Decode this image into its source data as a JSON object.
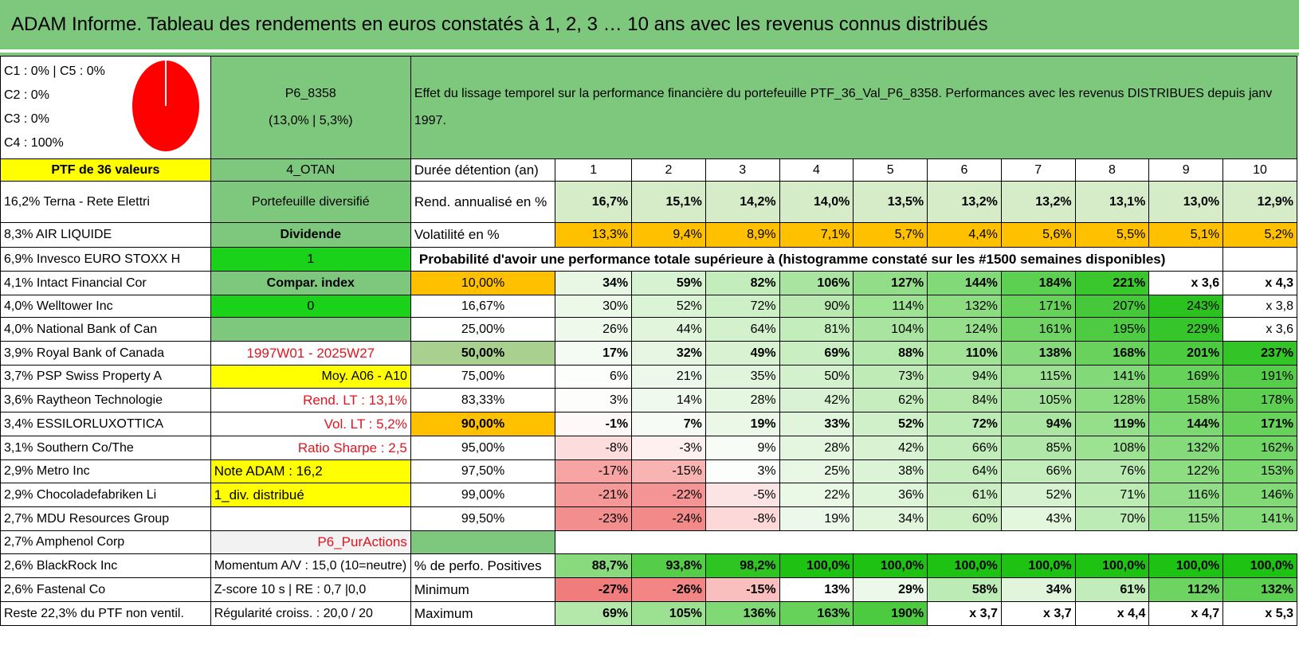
{
  "title": "ADAM Informe. Tableau des rendements en euros constatés à 1, 2, 3 … 10 ans avec les revenus connus distribués",
  "composition": [
    "C1 : 0% | C5 : 0%",
    "C2 : 0%",
    "C3 : 0%",
    "C4 : 100%"
  ],
  "portfolio_code": "P6_8358",
  "portfolio_perf": "(13,0% | 5,3%)",
  "description": "Effet du lissage temporel sur la performance financière du portefeuille PTF_36_Val_P6_8358. Performances avec les revenus DISTRIBUES depuis janv 1997.",
  "colors": {
    "header_green": "#7ec87e",
    "pie": "#ff0000",
    "yellow": "#ffff00",
    "orange": "#ffc000",
    "bright_green": "#19d219",
    "red_text": "#e0141e"
  },
  "col_a": [
    "PTF de 36 valeurs",
    "16,2% Terna - Rete Elettri",
    "8,3% AIR LIQUIDE",
    "6,9% Invesco EURO STOXX H",
    "4,1% Intact Financial Cor",
    "4,0% Welltower Inc",
    "4,0% National Bank of Can",
    "3,9% Royal Bank of Canada",
    "3,7% PSP Swiss Property A",
    "3,6% Raytheon Technologie",
    "3,4% ESSILORLUXOTTICA",
    "3,1% Southern Co/The",
    "2,9% Metro Inc",
    "2,9% Chocoladefabriken Li",
    "2,7% MDU Resources Group",
    "2,7% Amphenol Corp",
    "2,6% BlackRock Inc",
    "2,6% Fastenal Co",
    "Reste 22,3% du PTF non ventil."
  ],
  "col_b": [
    "4_OTAN",
    "Portefeuille diversifié",
    "Dividende",
    "1",
    "Compar. index",
    "0",
    "",
    "1997W01 - 2025W27",
    "Moy. A06 - A10",
    "Rend. LT : 13,1%",
    "Vol. LT : 5,2%",
    "Ratio Sharpe : 2,5",
    "Note ADAM : 16,2",
    "1_div. distribué",
    "",
    "P6_PurActions",
    "Momentum A/V : 15,0 (10=neutre)",
    "Z-score 10 s | RE : 0,7 |0,0",
    "Régularité croiss. : 20,0 / 20"
  ],
  "duration_label": "Durée détention (an)",
  "years": [
    "1",
    "2",
    "3",
    "4",
    "5",
    "6",
    "7",
    "8",
    "9",
    "10"
  ],
  "rend_label": "Rend. annualisé en %",
  "rend": [
    "16,7%",
    "15,1%",
    "14,2%",
    "14,0%",
    "13,5%",
    "13,2%",
    "13,2%",
    "13,1%",
    "13,0%",
    "12,9%"
  ],
  "vol_label": "Volatilité en %",
  "vol": [
    "13,3%",
    "9,4%",
    "8,9%",
    "7,1%",
    "5,7%",
    "4,4%",
    "5,6%",
    "5,5%",
    "5,1%",
    "5,2%"
  ],
  "prob_label": "Probabilité d'avoir une performance totale supérieure à (histogramme constaté sur les #1500 semaines disponibles)",
  "quantiles": [
    {
      "q": "10,00%",
      "v": [
        "34%",
        "59%",
        "82%",
        "106%",
        "127%",
        "144%",
        "184%",
        "221%",
        "x 3,6",
        "x 4,3"
      ]
    },
    {
      "q": "16,67%",
      "v": [
        "30%",
        "52%",
        "72%",
        "90%",
        "114%",
        "132%",
        "171%",
        "207%",
        "243%",
        "x 3,8"
      ]
    },
    {
      "q": "25,00%",
      "v": [
        "26%",
        "44%",
        "64%",
        "81%",
        "104%",
        "124%",
        "161%",
        "195%",
        "229%",
        "x 3,6"
      ]
    },
    {
      "q": "50,00%",
      "v": [
        "17%",
        "32%",
        "49%",
        "69%",
        "88%",
        "110%",
        "138%",
        "168%",
        "201%",
        "237%"
      ]
    },
    {
      "q": "75,00%",
      "v": [
        "6%",
        "21%",
        "35%",
        "50%",
        "73%",
        "94%",
        "115%",
        "141%",
        "169%",
        "191%"
      ]
    },
    {
      "q": "83,33%",
      "v": [
        "3%",
        "14%",
        "28%",
        "42%",
        "62%",
        "84%",
        "105%",
        "128%",
        "158%",
        "178%"
      ]
    },
    {
      "q": "90,00%",
      "v": [
        "-1%",
        "7%",
        "19%",
        "33%",
        "52%",
        "72%",
        "94%",
        "119%",
        "144%",
        "171%"
      ]
    },
    {
      "q": "95,00%",
      "v": [
        "-8%",
        "-3%",
        "9%",
        "28%",
        "42%",
        "66%",
        "85%",
        "108%",
        "132%",
        "162%"
      ]
    },
    {
      "q": "97,50%",
      "v": [
        "-17%",
        "-15%",
        "3%",
        "25%",
        "38%",
        "64%",
        "66%",
        "76%",
        "122%",
        "153%"
      ]
    },
    {
      "q": "99,00%",
      "v": [
        "-21%",
        "-22%",
        "-5%",
        "22%",
        "36%",
        "61%",
        "52%",
        "71%",
        "116%",
        "146%"
      ]
    },
    {
      "q": "99,50%",
      "v": [
        "-23%",
        "-24%",
        "-8%",
        "19%",
        "34%",
        "60%",
        "43%",
        "70%",
        "115%",
        "141%"
      ]
    }
  ],
  "pos_label": "% de perfo. Positives",
  "pos": [
    "88,7%",
    "93,8%",
    "98,2%",
    "100,0%",
    "100,0%",
    "100,0%",
    "100,0%",
    "100,0%",
    "100,0%",
    "100,0%"
  ],
  "min_label": "Minimum",
  "min": [
    "-27%",
    "-26%",
    "-15%",
    "13%",
    "29%",
    "58%",
    "34%",
    "61%",
    "112%",
    "132%"
  ],
  "max_label": "Maximum",
  "max": [
    "69%",
    "105%",
    "136%",
    "163%",
    "190%",
    "x 3,7",
    "x 3,7",
    "x 4,4",
    "x 4,7",
    "x 5,3"
  ]
}
